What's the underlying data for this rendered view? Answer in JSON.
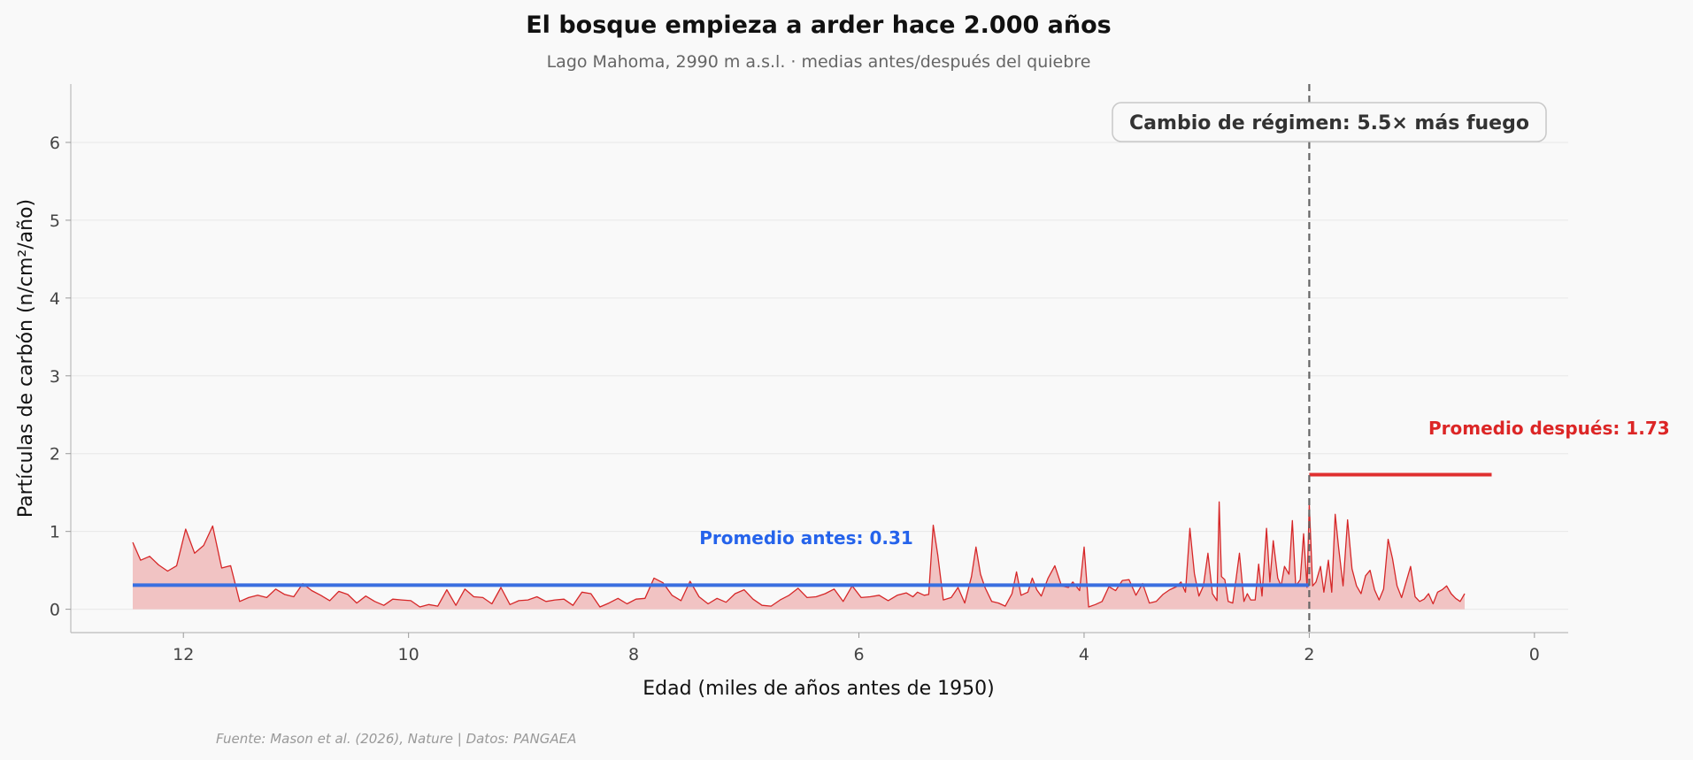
{
  "chart_data": {
    "type": "area",
    "title": "El bosque empieza a arder hace 2.000 años",
    "subtitle": "Lago Mahoma, 2990 m a.s.l. · medias antes/después del quiebre",
    "xlabel": "Edad (miles de años antes de 1950)",
    "ylabel": "Partículas de carbón (n/cm²/año)",
    "xlim": [
      13.0,
      -0.3
    ],
    "ylim": [
      -0.3,
      6.75
    ],
    "x_ticks": [
      12,
      10,
      8,
      6,
      4,
      2,
      0
    ],
    "y_ticks": [
      0,
      1,
      2,
      3,
      4,
      5,
      6
    ],
    "x_reversed": true,
    "grid": "horizontal",
    "series": [
      {
        "color": "#d62728",
        "fill_color": "#f1c3c3",
        "points": [
          [
            12.45,
            0.86
          ],
          [
            12.38,
            0.63
          ],
          [
            12.3,
            0.68
          ],
          [
            12.22,
            0.57
          ],
          [
            12.14,
            0.49
          ],
          [
            12.06,
            0.56
          ],
          [
            11.98,
            1.03
          ],
          [
            11.9,
            0.72
          ],
          [
            11.82,
            0.82
          ],
          [
            11.74,
            1.07
          ],
          [
            11.66,
            0.53
          ],
          [
            11.58,
            0.56
          ],
          [
            11.5,
            0.1
          ],
          [
            11.42,
            0.15
          ],
          [
            11.34,
            0.18
          ],
          [
            11.26,
            0.15
          ],
          [
            11.18,
            0.26
          ],
          [
            11.1,
            0.19
          ],
          [
            11.02,
            0.16
          ],
          [
            10.94,
            0.33
          ],
          [
            10.86,
            0.24
          ],
          [
            10.78,
            0.18
          ],
          [
            10.7,
            0.11
          ],
          [
            10.62,
            0.23
          ],
          [
            10.54,
            0.19
          ],
          [
            10.46,
            0.08
          ],
          [
            10.38,
            0.17
          ],
          [
            10.3,
            0.1
          ],
          [
            10.22,
            0.05
          ],
          [
            10.14,
            0.13
          ],
          [
            10.06,
            0.12
          ],
          [
            9.98,
            0.11
          ],
          [
            9.9,
            0.03
          ],
          [
            9.82,
            0.06
          ],
          [
            9.74,
            0.04
          ],
          [
            9.66,
            0.25
          ],
          [
            9.58,
            0.05
          ],
          [
            9.5,
            0.26
          ],
          [
            9.42,
            0.16
          ],
          [
            9.34,
            0.15
          ],
          [
            9.26,
            0.07
          ],
          [
            9.18,
            0.28
          ],
          [
            9.1,
            0.06
          ],
          [
            9.02,
            0.11
          ],
          [
            8.94,
            0.12
          ],
          [
            8.86,
            0.16
          ],
          [
            8.78,
            0.1
          ],
          [
            8.7,
            0.12
          ],
          [
            8.62,
            0.13
          ],
          [
            8.54,
            0.05
          ],
          [
            8.46,
            0.22
          ],
          [
            8.38,
            0.2
          ],
          [
            8.3,
            0.03
          ],
          [
            8.22,
            0.08
          ],
          [
            8.14,
            0.14
          ],
          [
            8.06,
            0.07
          ],
          [
            7.98,
            0.13
          ],
          [
            7.9,
            0.14
          ],
          [
            7.82,
            0.4
          ],
          [
            7.74,
            0.34
          ],
          [
            7.66,
            0.18
          ],
          [
            7.58,
            0.11
          ],
          [
            7.5,
            0.36
          ],
          [
            7.42,
            0.16
          ],
          [
            7.34,
            0.07
          ],
          [
            7.26,
            0.14
          ],
          [
            7.18,
            0.09
          ],
          [
            7.1,
            0.2
          ],
          [
            7.02,
            0.25
          ],
          [
            6.94,
            0.13
          ],
          [
            6.86,
            0.05
          ],
          [
            6.78,
            0.04
          ],
          [
            6.7,
            0.12
          ],
          [
            6.62,
            0.18
          ],
          [
            6.54,
            0.27
          ],
          [
            6.46,
            0.15
          ],
          [
            6.38,
            0.16
          ],
          [
            6.3,
            0.2
          ],
          [
            6.22,
            0.26
          ],
          [
            6.14,
            0.1
          ],
          [
            6.06,
            0.3
          ],
          [
            5.98,
            0.15
          ],
          [
            5.9,
            0.16
          ],
          [
            5.82,
            0.18
          ],
          [
            5.74,
            0.11
          ],
          [
            5.66,
            0.18
          ],
          [
            5.58,
            0.21
          ],
          [
            5.52,
            0.16
          ],
          [
            5.48,
            0.22
          ],
          [
            5.42,
            0.18
          ],
          [
            5.38,
            0.19
          ],
          [
            5.34,
            1.08
          ],
          [
            5.3,
            0.7
          ],
          [
            5.25,
            0.12
          ],
          [
            5.18,
            0.15
          ],
          [
            5.12,
            0.28
          ],
          [
            5.06,
            0.08
          ],
          [
            5.0,
            0.42
          ],
          [
            4.96,
            0.8
          ],
          [
            4.92,
            0.45
          ],
          [
            4.88,
            0.28
          ],
          [
            4.82,
            0.1
          ],
          [
            4.76,
            0.08
          ],
          [
            4.7,
            0.04
          ],
          [
            4.64,
            0.2
          ],
          [
            4.6,
            0.48
          ],
          [
            4.56,
            0.18
          ],
          [
            4.5,
            0.22
          ],
          [
            4.46,
            0.4
          ],
          [
            4.42,
            0.25
          ],
          [
            4.38,
            0.17
          ],
          [
            4.32,
            0.4
          ],
          [
            4.26,
            0.56
          ],
          [
            4.2,
            0.3
          ],
          [
            4.14,
            0.28
          ],
          [
            4.1,
            0.35
          ],
          [
            4.04,
            0.24
          ],
          [
            4.0,
            0.8
          ],
          [
            3.96,
            0.03
          ],
          [
            3.9,
            0.06
          ],
          [
            3.84,
            0.1
          ],
          [
            3.78,
            0.29
          ],
          [
            3.72,
            0.24
          ],
          [
            3.66,
            0.37
          ],
          [
            3.6,
            0.38
          ],
          [
            3.54,
            0.18
          ],
          [
            3.48,
            0.33
          ],
          [
            3.42,
            0.08
          ],
          [
            3.36,
            0.1
          ],
          [
            3.3,
            0.19
          ],
          [
            3.24,
            0.25
          ],
          [
            3.18,
            0.29
          ],
          [
            3.14,
            0.35
          ],
          [
            3.1,
            0.22
          ],
          [
            3.06,
            1.04
          ],
          [
            3.02,
            0.46
          ],
          [
            2.98,
            0.17
          ],
          [
            2.94,
            0.3
          ],
          [
            2.9,
            0.72
          ],
          [
            2.86,
            0.2
          ],
          [
            2.82,
            0.11
          ],
          [
            2.8,
            1.38
          ],
          [
            2.78,
            0.42
          ],
          [
            2.75,
            0.38
          ],
          [
            2.72,
            0.1
          ],
          [
            2.68,
            0.08
          ],
          [
            2.65,
            0.39
          ],
          [
            2.62,
            0.72
          ],
          [
            2.58,
            0.1
          ],
          [
            2.55,
            0.2
          ],
          [
            2.52,
            0.12
          ],
          [
            2.48,
            0.12
          ],
          [
            2.45,
            0.58
          ],
          [
            2.42,
            0.17
          ],
          [
            2.38,
            1.04
          ],
          [
            2.35,
            0.35
          ],
          [
            2.32,
            0.88
          ],
          [
            2.28,
            0.4
          ],
          [
            2.25,
            0.3
          ],
          [
            2.22,
            0.55
          ],
          [
            2.18,
            0.45
          ],
          [
            2.15,
            1.14
          ],
          [
            2.12,
            0.3
          ],
          [
            2.08,
            0.38
          ],
          [
            2.05,
            0.97
          ],
          [
            2.02,
            0.28
          ],
          [
            2.0,
            1.36
          ],
          [
            1.97,
            0.3
          ],
          [
            1.94,
            0.35
          ],
          [
            1.9,
            0.55
          ],
          [
            1.87,
            0.22
          ],
          [
            1.83,
            0.63
          ],
          [
            1.8,
            0.22
          ],
          [
            1.77,
            1.22
          ],
          [
            1.74,
            0.8
          ],
          [
            1.7,
            0.3
          ],
          [
            1.66,
            1.15
          ],
          [
            1.62,
            0.52
          ],
          [
            1.58,
            0.3
          ],
          [
            1.54,
            0.2
          ],
          [
            1.5,
            0.43
          ],
          [
            1.46,
            0.5
          ],
          [
            1.42,
            0.25
          ],
          [
            1.38,
            0.12
          ],
          [
            1.34,
            0.26
          ],
          [
            1.3,
            0.9
          ],
          [
            1.26,
            0.65
          ],
          [
            1.22,
            0.3
          ],
          [
            1.18,
            0.15
          ],
          [
            1.14,
            0.35
          ],
          [
            1.1,
            0.55
          ],
          [
            1.06,
            0.16
          ],
          [
            1.02,
            0.1
          ],
          [
            0.98,
            0.13
          ],
          [
            0.94,
            0.2
          ],
          [
            0.9,
            0.07
          ],
          [
            0.86,
            0.22
          ],
          [
            0.82,
            0.25
          ],
          [
            0.78,
            0.3
          ],
          [
            0.74,
            0.2
          ],
          [
            0.7,
            0.14
          ],
          [
            0.66,
            0.1
          ],
          [
            0.62,
            0.2
          ]
        ]
      }
    ],
    "regime_change_x": 2.0,
    "mean_before": {
      "value": 0.31,
      "x_range": [
        12.45,
        2.0
      ],
      "color": "#3a6fe0",
      "label": "Promedio antes: 0.31"
    },
    "mean_after": {
      "value": 1.73,
      "x_range": [
        2.0,
        0.38
      ],
      "color": "#e03030",
      "label": "Promedio después: 1.73"
    },
    "annotation": "Cambio de régimen: 5.5× más fuego",
    "source": "Fuente: Mason et al. (2026), Nature | Datos: PANGAEA"
  }
}
